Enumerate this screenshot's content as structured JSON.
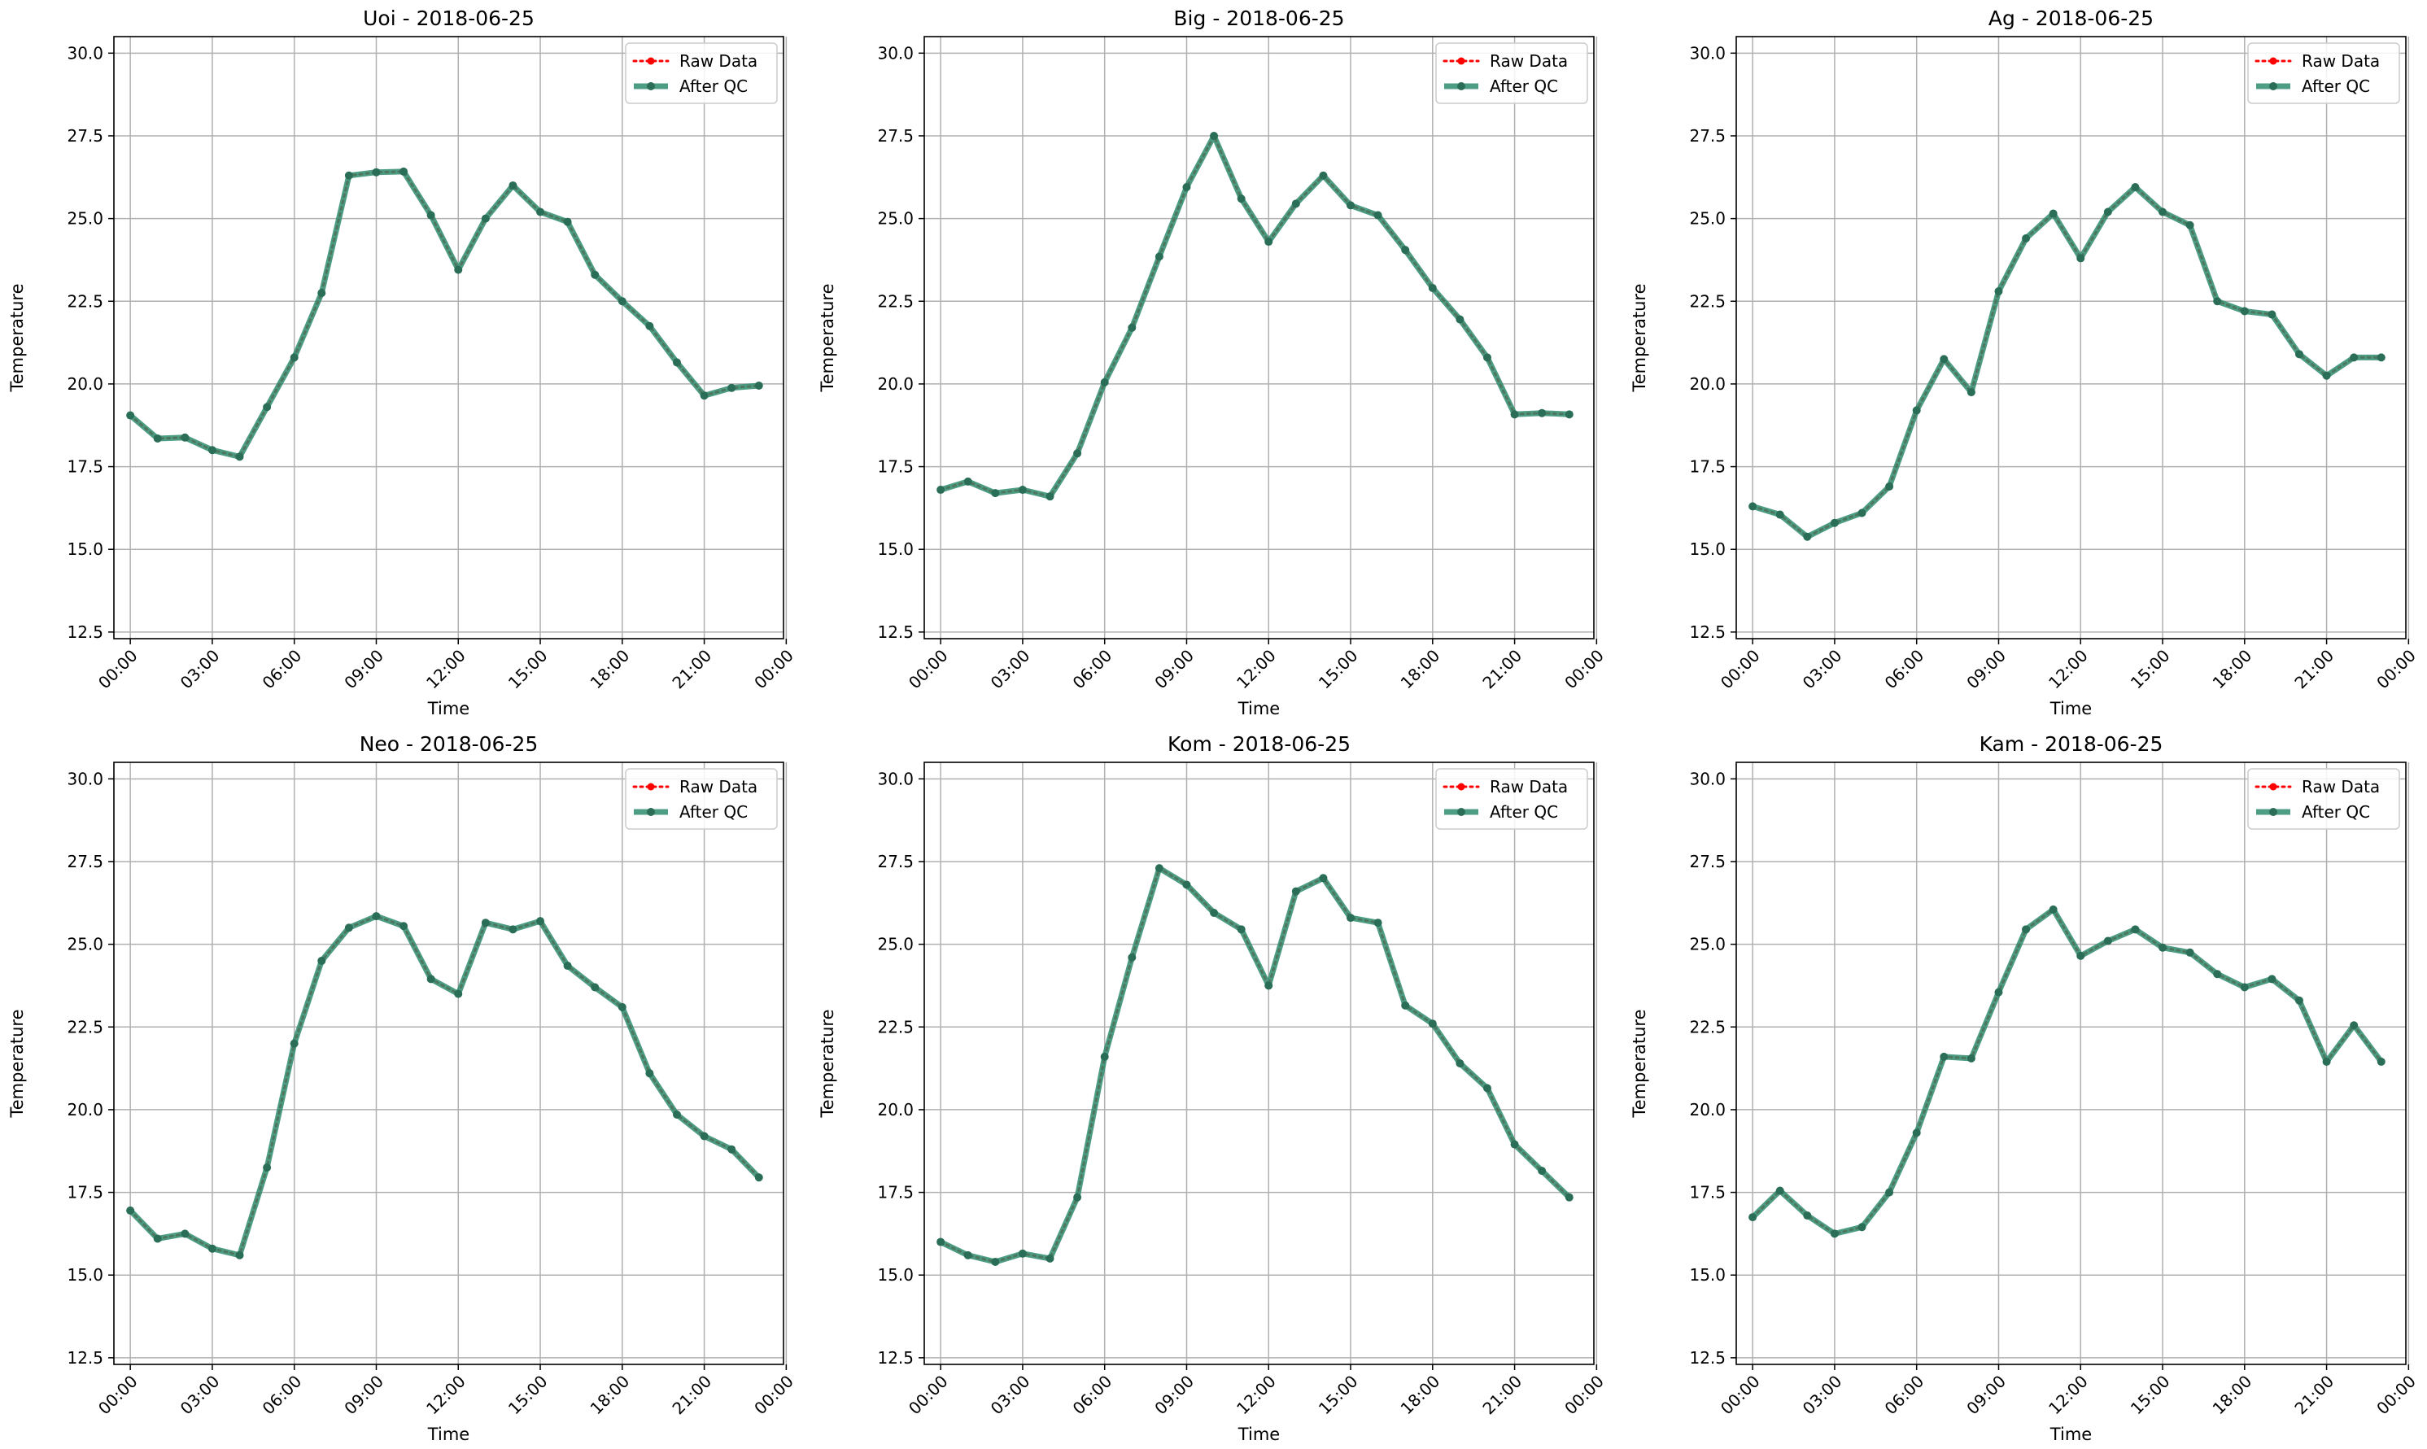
{
  "figure": {
    "legend_labels": [
      "Raw Data",
      "After QC"
    ],
    "colors": {
      "raw": "#ff0000",
      "qc": "#2e8b6e",
      "grid": "#b0b0b0"
    }
  },
  "chart_data": [
    {
      "type": "line",
      "title": "Uoi - 2018-06-25",
      "xlabel": "Time",
      "ylabel": "Temperature",
      "xticks": [
        "00:00",
        "03:00",
        "06:00",
        "09:00",
        "12:00",
        "15:00",
        "18:00",
        "21:00",
        "00:00"
      ],
      "yticks": [
        "12.5",
        "15.0",
        "17.5",
        "20.0",
        "22.5",
        "25.0",
        "27.5",
        "30.0"
      ],
      "ylim": [
        12.3,
        30.5
      ],
      "xlim_hours": [
        -0.6,
        23.9
      ],
      "grid": true,
      "legend_position": "top-right",
      "x_hours": [
        0,
        1,
        2,
        3,
        4,
        5,
        6,
        7,
        8,
        9,
        10,
        11,
        12,
        13,
        14,
        15,
        16,
        17,
        18,
        19,
        20,
        21,
        22,
        23
      ],
      "series": [
        {
          "name": "Raw Data",
          "values": [
            19.05,
            18.35,
            18.38,
            18.0,
            17.8,
            19.3,
            20.8,
            22.75,
            26.3,
            26.4,
            26.42,
            25.1,
            23.45,
            25.0,
            26.0,
            25.2,
            24.9,
            23.3,
            22.5,
            21.75,
            20.65,
            19.65,
            19.88,
            19.95
          ]
        },
        {
          "name": "After QC",
          "values": [
            19.05,
            18.35,
            18.38,
            18.0,
            17.8,
            19.3,
            20.8,
            22.75,
            26.3,
            26.4,
            26.42,
            25.1,
            23.45,
            25.0,
            26.0,
            25.2,
            24.9,
            23.3,
            22.5,
            21.75,
            20.65,
            19.65,
            19.88,
            19.95
          ]
        }
      ]
    },
    {
      "type": "line",
      "title": "Big - 2018-06-25",
      "xlabel": "Time",
      "ylabel": "Temperature",
      "xticks": [
        "00:00",
        "03:00",
        "06:00",
        "09:00",
        "12:00",
        "15:00",
        "18:00",
        "21:00",
        "00:00"
      ],
      "yticks": [
        "12.5",
        "15.0",
        "17.5",
        "20.0",
        "22.5",
        "25.0",
        "27.5",
        "30.0"
      ],
      "ylim": [
        12.3,
        30.5
      ],
      "xlim_hours": [
        -0.6,
        23.9
      ],
      "grid": true,
      "legend_position": "top-right",
      "x_hours": [
        0,
        1,
        2,
        3,
        4,
        5,
        6,
        7,
        8,
        9,
        10,
        11,
        12,
        13,
        14,
        15,
        16,
        17,
        18,
        19,
        20,
        21,
        22,
        23
      ],
      "series": [
        {
          "name": "Raw Data",
          "values": [
            16.8,
            17.05,
            16.7,
            16.8,
            16.6,
            17.9,
            20.05,
            21.7,
            23.85,
            25.95,
            27.5,
            25.6,
            24.3,
            25.45,
            26.3,
            25.4,
            25.1,
            24.05,
            22.9,
            21.95,
            20.8,
            19.08,
            19.12,
            19.08
          ]
        },
        {
          "name": "After QC",
          "values": [
            16.8,
            17.05,
            16.7,
            16.8,
            16.6,
            17.9,
            20.05,
            21.7,
            23.85,
            25.95,
            27.5,
            25.6,
            24.3,
            25.45,
            26.3,
            25.4,
            25.1,
            24.05,
            22.9,
            21.95,
            20.8,
            19.08,
            19.12,
            19.08
          ]
        }
      ]
    },
    {
      "type": "line",
      "title": "Ag - 2018-06-25",
      "xlabel": "Time",
      "ylabel": "Temperature",
      "xticks": [
        "00:00",
        "03:00",
        "06:00",
        "09:00",
        "12:00",
        "15:00",
        "18:00",
        "21:00",
        "00:00"
      ],
      "yticks": [
        "12.5",
        "15.0",
        "17.5",
        "20.0",
        "22.5",
        "25.0",
        "27.5",
        "30.0"
      ],
      "ylim": [
        12.3,
        30.5
      ],
      "xlim_hours": [
        -0.6,
        23.9
      ],
      "grid": true,
      "legend_position": "top-right",
      "x_hours": [
        0,
        1,
        2,
        3,
        4,
        5,
        6,
        7,
        8,
        9,
        10,
        11,
        12,
        13,
        14,
        15,
        16,
        17,
        18,
        19,
        20,
        21,
        22,
        23
      ],
      "series": [
        {
          "name": "Raw Data",
          "values": [
            16.3,
            16.05,
            15.38,
            15.8,
            16.1,
            16.9,
            19.2,
            20.75,
            19.75,
            22.8,
            24.4,
            25.15,
            23.8,
            25.2,
            25.95,
            25.2,
            24.8,
            22.5,
            22.2,
            22.1,
            20.9,
            20.25,
            20.8,
            20.8
          ]
        },
        {
          "name": "After QC",
          "values": [
            16.3,
            16.05,
            15.38,
            15.8,
            16.1,
            16.9,
            19.2,
            20.75,
            19.75,
            22.8,
            24.4,
            25.15,
            23.8,
            25.2,
            25.95,
            25.2,
            24.8,
            22.5,
            22.2,
            22.1,
            20.9,
            20.25,
            20.8,
            20.8
          ]
        }
      ]
    },
    {
      "type": "line",
      "title": "Neo - 2018-06-25",
      "xlabel": "Time",
      "ylabel": "Temperature",
      "xticks": [
        "00:00",
        "03:00",
        "06:00",
        "09:00",
        "12:00",
        "15:00",
        "18:00",
        "21:00",
        "00:00"
      ],
      "yticks": [
        "12.5",
        "15.0",
        "17.5",
        "20.0",
        "22.5",
        "25.0",
        "27.5",
        "30.0"
      ],
      "ylim": [
        12.3,
        30.5
      ],
      "xlim_hours": [
        -0.6,
        23.9
      ],
      "grid": true,
      "legend_position": "top-right",
      "x_hours": [
        0,
        1,
        2,
        3,
        4,
        5,
        6,
        7,
        8,
        9,
        10,
        11,
        12,
        13,
        14,
        15,
        16,
        17,
        18,
        19,
        20,
        21,
        22,
        23
      ],
      "series": [
        {
          "name": "Raw Data",
          "values": [
            16.95,
            16.1,
            16.25,
            15.8,
            15.6,
            18.25,
            22.0,
            24.5,
            25.5,
            25.85,
            25.55,
            23.95,
            23.5,
            25.65,
            25.45,
            25.7,
            24.35,
            23.7,
            23.1,
            21.1,
            19.85,
            19.2,
            18.8,
            17.95
          ]
        },
        {
          "name": "After QC",
          "values": [
            16.95,
            16.1,
            16.25,
            15.8,
            15.6,
            18.25,
            22.0,
            24.5,
            25.5,
            25.85,
            25.55,
            23.95,
            23.5,
            25.65,
            25.45,
            25.7,
            24.35,
            23.7,
            23.1,
            21.1,
            19.85,
            19.2,
            18.8,
            17.95
          ]
        }
      ]
    },
    {
      "type": "line",
      "title": "Kom - 2018-06-25",
      "xlabel": "Time",
      "ylabel": "Temperature",
      "xticks": [
        "00:00",
        "03:00",
        "06:00",
        "09:00",
        "12:00",
        "15:00",
        "18:00",
        "21:00",
        "00:00"
      ],
      "yticks": [
        "12.5",
        "15.0",
        "17.5",
        "20.0",
        "22.5",
        "25.0",
        "27.5",
        "30.0"
      ],
      "ylim": [
        12.3,
        30.5
      ],
      "xlim_hours": [
        -0.6,
        23.9
      ],
      "grid": true,
      "legend_position": "top-right",
      "x_hours": [
        0,
        1,
        2,
        3,
        4,
        5,
        6,
        7,
        8,
        9,
        10,
        11,
        12,
        13,
        14,
        15,
        16,
        17,
        18,
        19,
        20,
        21,
        22,
        23
      ],
      "series": [
        {
          "name": "Raw Data",
          "values": [
            16.0,
            15.6,
            15.4,
            15.65,
            15.5,
            17.35,
            21.6,
            24.6,
            27.3,
            26.8,
            25.95,
            25.45,
            23.75,
            26.6,
            27.0,
            25.8,
            25.65,
            23.15,
            22.6,
            21.4,
            20.65,
            18.95,
            18.15,
            17.35
          ]
        },
        {
          "name": "After QC",
          "values": [
            16.0,
            15.6,
            15.4,
            15.65,
            15.5,
            17.35,
            21.6,
            24.6,
            27.3,
            26.8,
            25.95,
            25.45,
            23.75,
            26.6,
            27.0,
            25.8,
            25.65,
            23.15,
            22.6,
            21.4,
            20.65,
            18.95,
            18.15,
            17.35
          ]
        }
      ]
    },
    {
      "type": "line",
      "title": "Kam - 2018-06-25",
      "xlabel": "Time",
      "ylabel": "Temperature",
      "xticks": [
        "00:00",
        "03:00",
        "06:00",
        "09:00",
        "12:00",
        "15:00",
        "18:00",
        "21:00",
        "00:00"
      ],
      "yticks": [
        "12.5",
        "15.0",
        "17.5",
        "20.0",
        "22.5",
        "25.0",
        "27.5",
        "30.0"
      ],
      "ylim": [
        12.3,
        30.5
      ],
      "xlim_hours": [
        -0.6,
        23.9
      ],
      "grid": true,
      "legend_position": "top-right",
      "x_hours": [
        0,
        1,
        2,
        3,
        4,
        5,
        6,
        7,
        8,
        9,
        10,
        11,
        12,
        13,
        14,
        15,
        16,
        17,
        18,
        19,
        20,
        21,
        22,
        23
      ],
      "series": [
        {
          "name": "Raw Data",
          "values": [
            16.75,
            17.55,
            16.8,
            16.25,
            16.45,
            17.5,
            19.3,
            21.6,
            21.55,
            23.55,
            25.45,
            26.05,
            24.65,
            25.1,
            25.45,
            24.9,
            24.75,
            24.1,
            23.7,
            23.95,
            23.3,
            21.45,
            22.55,
            21.45
          ]
        },
        {
          "name": "After QC",
          "values": [
            16.75,
            17.55,
            16.8,
            16.25,
            16.45,
            17.5,
            19.3,
            21.6,
            21.55,
            23.55,
            25.45,
            26.05,
            24.65,
            25.1,
            25.45,
            24.9,
            24.75,
            24.1,
            23.7,
            23.95,
            23.3,
            21.45,
            22.55,
            21.45
          ]
        }
      ]
    }
  ]
}
